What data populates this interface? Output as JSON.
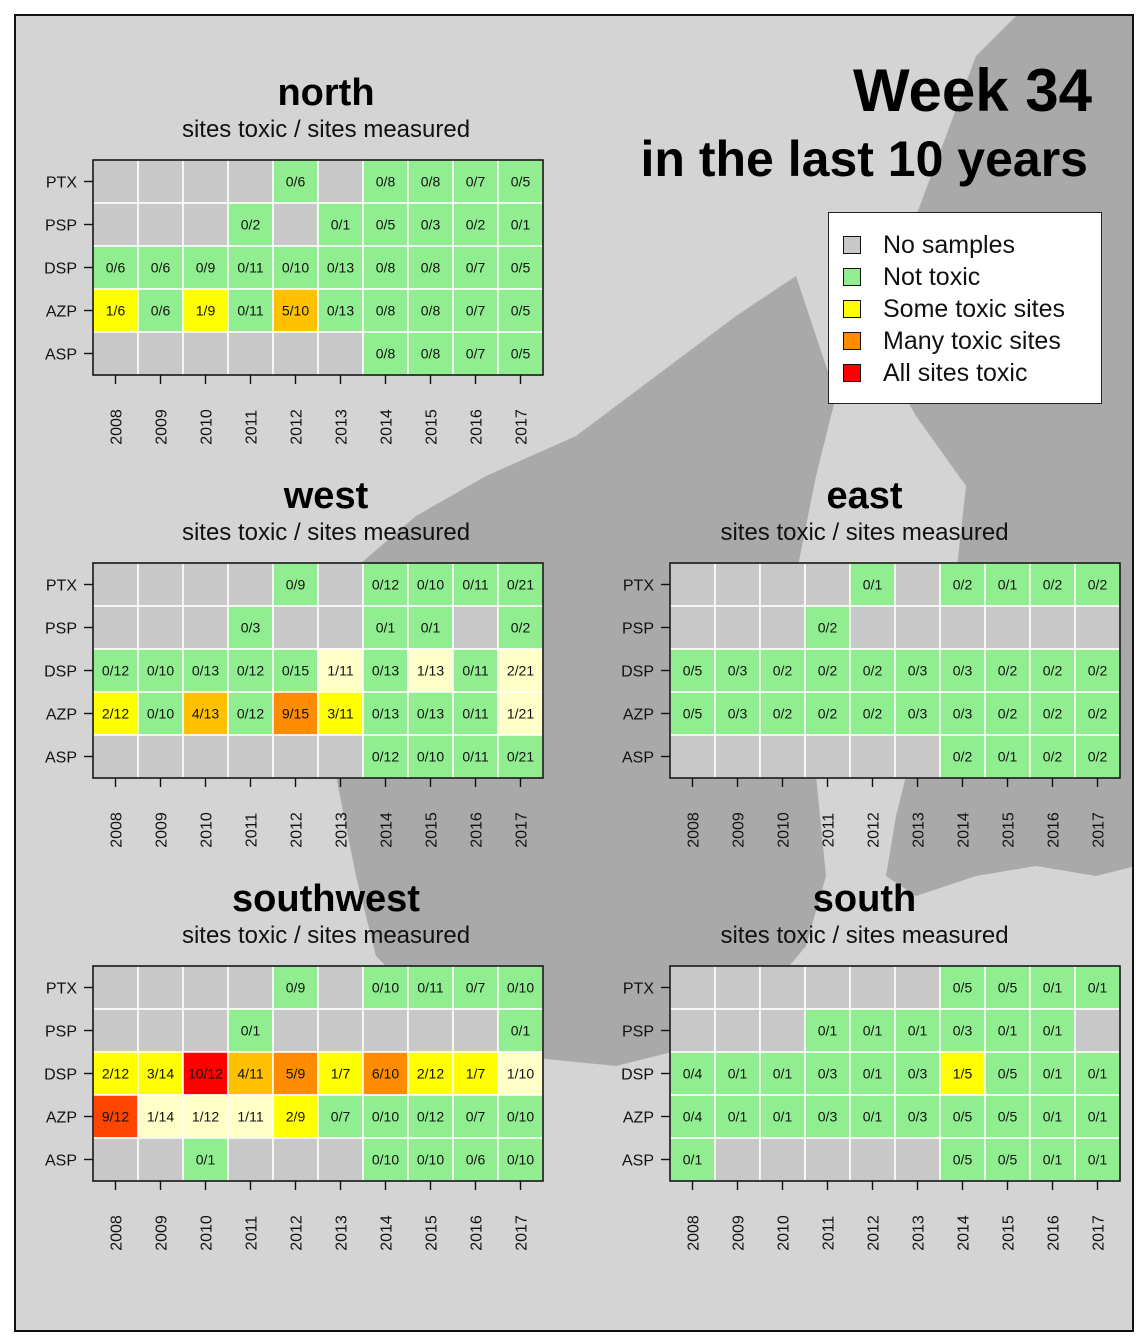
{
  "title": {
    "line1": "Week 34",
    "line2": "in the last 10 years"
  },
  "legend": [
    {
      "label": "No samples",
      "color": "#c8c8c8"
    },
    {
      "label": "Not toxic",
      "color": "#90ee90"
    },
    {
      "label": "Some toxic sites",
      "color": "#ffff00"
    },
    {
      "label": "Many toxic sites",
      "color": "#ff8c00"
    },
    {
      "label": "All sites toxic",
      "color": "#ff0000"
    }
  ],
  "colors": {
    "no_samples": "#c8c8c8",
    "not_toxic": "#90ee90",
    "few_toxic": "#ffffc8",
    "some_toxic": "#ffff00",
    "more_toxic": "#ffc000",
    "many_toxic": "#ff8c00",
    "most_toxic": "#ff4500",
    "all_toxic": "#ff0000"
  },
  "chart_data": [
    {
      "type": "heatmap",
      "title": "north",
      "subtitle": "sites toxic / sites measured",
      "rows": [
        "PTX",
        "PSP",
        "DSP",
        "AZP",
        "ASP"
      ],
      "columns": [
        "2008",
        "2009",
        "2010",
        "2011",
        "2012",
        "2013",
        "2014",
        "2015",
        "2016",
        "2017"
      ],
      "cells": [
        [
          "",
          "",
          "",
          "",
          "0/6",
          "",
          "0/8",
          "0/8",
          "0/7",
          "0/5"
        ],
        [
          "",
          "",
          "",
          "0/2",
          "",
          "0/1",
          "0/5",
          "0/3",
          "0/2",
          "0/1"
        ],
        [
          "0/6",
          "0/6",
          "0/9",
          "0/11",
          "0/10",
          "0/13",
          "0/8",
          "0/8",
          "0/7",
          "0/5"
        ],
        [
          "1/6",
          "0/6",
          "1/9",
          "0/11",
          "5/10",
          "0/13",
          "0/8",
          "0/8",
          "0/7",
          "0/5"
        ],
        [
          "",
          "",
          "",
          "",
          "",
          "",
          "0/8",
          "0/8",
          "0/7",
          "0/5"
        ]
      ],
      "cell_colors": [
        [
          "no_samples",
          "no_samples",
          "no_samples",
          "no_samples",
          "not_toxic",
          "no_samples",
          "not_toxic",
          "not_toxic",
          "not_toxic",
          "not_toxic"
        ],
        [
          "no_samples",
          "no_samples",
          "no_samples",
          "not_toxic",
          "no_samples",
          "not_toxic",
          "not_toxic",
          "not_toxic",
          "not_toxic",
          "not_toxic"
        ],
        [
          "not_toxic",
          "not_toxic",
          "not_toxic",
          "not_toxic",
          "not_toxic",
          "not_toxic",
          "not_toxic",
          "not_toxic",
          "not_toxic",
          "not_toxic"
        ],
        [
          "some_toxic",
          "not_toxic",
          "some_toxic",
          "not_toxic",
          "more_toxic",
          "not_toxic",
          "not_toxic",
          "not_toxic",
          "not_toxic",
          "not_toxic"
        ],
        [
          "no_samples",
          "no_samples",
          "no_samples",
          "no_samples",
          "no_samples",
          "no_samples",
          "not_toxic",
          "not_toxic",
          "not_toxic",
          "not_toxic"
        ]
      ]
    },
    {
      "type": "heatmap",
      "title": "west",
      "subtitle": "sites toxic / sites measured",
      "rows": [
        "PTX",
        "PSP",
        "DSP",
        "AZP",
        "ASP"
      ],
      "columns": [
        "2008",
        "2009",
        "2010",
        "2011",
        "2012",
        "2013",
        "2014",
        "2015",
        "2016",
        "2017"
      ],
      "cells": [
        [
          "",
          "",
          "",
          "",
          "0/9",
          "",
          "0/12",
          "0/10",
          "0/11",
          "0/21"
        ],
        [
          "",
          "",
          "",
          "0/3",
          "",
          "",
          "0/1",
          "0/1",
          "",
          "0/2"
        ],
        [
          "0/12",
          "0/10",
          "0/13",
          "0/12",
          "0/15",
          "1/11",
          "0/13",
          "1/13",
          "0/11",
          "2/21"
        ],
        [
          "2/12",
          "0/10",
          "4/13",
          "0/12",
          "9/15",
          "3/11",
          "0/13",
          "0/13",
          "0/11",
          "1/21"
        ],
        [
          "",
          "",
          "",
          "",
          "",
          "",
          "0/12",
          "0/10",
          "0/11",
          "0/21"
        ]
      ],
      "cell_colors": [
        [
          "no_samples",
          "no_samples",
          "no_samples",
          "no_samples",
          "not_toxic",
          "no_samples",
          "not_toxic",
          "not_toxic",
          "not_toxic",
          "not_toxic"
        ],
        [
          "no_samples",
          "no_samples",
          "no_samples",
          "not_toxic",
          "no_samples",
          "no_samples",
          "not_toxic",
          "not_toxic",
          "no_samples",
          "not_toxic"
        ],
        [
          "not_toxic",
          "not_toxic",
          "not_toxic",
          "not_toxic",
          "not_toxic",
          "few_toxic",
          "not_toxic",
          "few_toxic",
          "not_toxic",
          "few_toxic"
        ],
        [
          "some_toxic",
          "not_toxic",
          "more_toxic",
          "not_toxic",
          "many_toxic",
          "some_toxic",
          "not_toxic",
          "not_toxic",
          "not_toxic",
          "few_toxic"
        ],
        [
          "no_samples",
          "no_samples",
          "no_samples",
          "no_samples",
          "no_samples",
          "no_samples",
          "not_toxic",
          "not_toxic",
          "not_toxic",
          "not_toxic"
        ]
      ]
    },
    {
      "type": "heatmap",
      "title": "east",
      "subtitle": "sites toxic / sites measured",
      "rows": [
        "PTX",
        "PSP",
        "DSP",
        "AZP",
        "ASP"
      ],
      "columns": [
        "2008",
        "2009",
        "2010",
        "2011",
        "2012",
        "2013",
        "2014",
        "2015",
        "2016",
        "2017"
      ],
      "cells": [
        [
          "",
          "",
          "",
          "",
          "0/1",
          "",
          "0/2",
          "0/1",
          "0/2",
          "0/2"
        ],
        [
          "",
          "",
          "",
          "0/2",
          "",
          "",
          "",
          "",
          "",
          ""
        ],
        [
          "0/5",
          "0/3",
          "0/2",
          "0/2",
          "0/2",
          "0/3",
          "0/3",
          "0/2",
          "0/2",
          "0/2"
        ],
        [
          "0/5",
          "0/3",
          "0/2",
          "0/2",
          "0/2",
          "0/3",
          "0/3",
          "0/2",
          "0/2",
          "0/2"
        ],
        [
          "",
          "",
          "",
          "",
          "",
          "",
          "0/2",
          "0/1",
          "0/2",
          "0/2"
        ]
      ],
      "cell_colors": [
        [
          "no_samples",
          "no_samples",
          "no_samples",
          "no_samples",
          "not_toxic",
          "no_samples",
          "not_toxic",
          "not_toxic",
          "not_toxic",
          "not_toxic"
        ],
        [
          "no_samples",
          "no_samples",
          "no_samples",
          "not_toxic",
          "no_samples",
          "no_samples",
          "no_samples",
          "no_samples",
          "no_samples",
          "no_samples"
        ],
        [
          "not_toxic",
          "not_toxic",
          "not_toxic",
          "not_toxic",
          "not_toxic",
          "not_toxic",
          "not_toxic",
          "not_toxic",
          "not_toxic",
          "not_toxic"
        ],
        [
          "not_toxic",
          "not_toxic",
          "not_toxic",
          "not_toxic",
          "not_toxic",
          "not_toxic",
          "not_toxic",
          "not_toxic",
          "not_toxic",
          "not_toxic"
        ],
        [
          "no_samples",
          "no_samples",
          "no_samples",
          "no_samples",
          "no_samples",
          "no_samples",
          "not_toxic",
          "not_toxic",
          "not_toxic",
          "not_toxic"
        ]
      ]
    },
    {
      "type": "heatmap",
      "title": "southwest",
      "subtitle": "sites toxic / sites measured",
      "rows": [
        "PTX",
        "PSP",
        "DSP",
        "AZP",
        "ASP"
      ],
      "columns": [
        "2008",
        "2009",
        "2010",
        "2011",
        "2012",
        "2013",
        "2014",
        "2015",
        "2016",
        "2017"
      ],
      "cells": [
        [
          "",
          "",
          "",
          "",
          "0/9",
          "",
          "0/10",
          "0/11",
          "0/7",
          "0/10"
        ],
        [
          "",
          "",
          "",
          "0/1",
          "",
          "",
          "",
          "",
          "",
          "0/1"
        ],
        [
          "2/12",
          "3/14",
          "10/12",
          "4/11",
          "5/9",
          "1/7",
          "6/10",
          "2/12",
          "1/7",
          "1/10"
        ],
        [
          "9/12",
          "1/14",
          "1/12",
          "1/11",
          "2/9",
          "0/7",
          "0/10",
          "0/12",
          "0/7",
          "0/10"
        ],
        [
          "",
          "",
          "0/1",
          "",
          "",
          "",
          "0/10",
          "0/10",
          "0/6",
          "0/10"
        ]
      ],
      "cell_colors": [
        [
          "no_samples",
          "no_samples",
          "no_samples",
          "no_samples",
          "not_toxic",
          "no_samples",
          "not_toxic",
          "not_toxic",
          "not_toxic",
          "not_toxic"
        ],
        [
          "no_samples",
          "no_samples",
          "no_samples",
          "not_toxic",
          "no_samples",
          "no_samples",
          "no_samples",
          "no_samples",
          "no_samples",
          "not_toxic"
        ],
        [
          "some_toxic",
          "some_toxic",
          "all_toxic",
          "more_toxic",
          "many_toxic",
          "some_toxic",
          "many_toxic",
          "some_toxic",
          "some_toxic",
          "few_toxic"
        ],
        [
          "most_toxic",
          "few_toxic",
          "few_toxic",
          "few_toxic",
          "some_toxic",
          "not_toxic",
          "not_toxic",
          "not_toxic",
          "not_toxic",
          "not_toxic"
        ],
        [
          "no_samples",
          "no_samples",
          "not_toxic",
          "no_samples",
          "no_samples",
          "no_samples",
          "not_toxic",
          "not_toxic",
          "not_toxic",
          "not_toxic"
        ]
      ]
    },
    {
      "type": "heatmap",
      "title": "south",
      "subtitle": "sites toxic / sites measured",
      "rows": [
        "PTX",
        "PSP",
        "DSP",
        "AZP",
        "ASP"
      ],
      "columns": [
        "2008",
        "2009",
        "2010",
        "2011",
        "2012",
        "2013",
        "2014",
        "2015",
        "2016",
        "2017"
      ],
      "cells": [
        [
          "",
          "",
          "",
          "",
          "",
          "",
          "0/5",
          "0/5",
          "0/1",
          "0/1"
        ],
        [
          "",
          "",
          "",
          "0/1",
          "0/1",
          "0/1",
          "0/3",
          "0/1",
          "0/1",
          ""
        ],
        [
          "0/4",
          "0/1",
          "0/1",
          "0/3",
          "0/1",
          "0/3",
          "1/5",
          "0/5",
          "0/1",
          "0/1"
        ],
        [
          "0/4",
          "0/1",
          "0/1",
          "0/3",
          "0/1",
          "0/3",
          "0/5",
          "0/5",
          "0/1",
          "0/1"
        ],
        [
          "0/1",
          "",
          "",
          "",
          "",
          "",
          "0/5",
          "0/5",
          "0/1",
          "0/1"
        ]
      ],
      "cell_colors": [
        [
          "no_samples",
          "no_samples",
          "no_samples",
          "no_samples",
          "no_samples",
          "no_samples",
          "not_toxic",
          "not_toxic",
          "not_toxic",
          "not_toxic"
        ],
        [
          "no_samples",
          "no_samples",
          "no_samples",
          "not_toxic",
          "not_toxic",
          "not_toxic",
          "not_toxic",
          "not_toxic",
          "not_toxic",
          "no_samples"
        ],
        [
          "not_toxic",
          "not_toxic",
          "not_toxic",
          "not_toxic",
          "not_toxic",
          "not_toxic",
          "some_toxic",
          "not_toxic",
          "not_toxic",
          "not_toxic"
        ],
        [
          "not_toxic",
          "not_toxic",
          "not_toxic",
          "not_toxic",
          "not_toxic",
          "not_toxic",
          "not_toxic",
          "not_toxic",
          "not_toxic",
          "not_toxic"
        ],
        [
          "not_toxic",
          "no_samples",
          "no_samples",
          "no_samples",
          "no_samples",
          "no_samples",
          "not_toxic",
          "not_toxic",
          "not_toxic",
          "not_toxic"
        ]
      ]
    }
  ]
}
